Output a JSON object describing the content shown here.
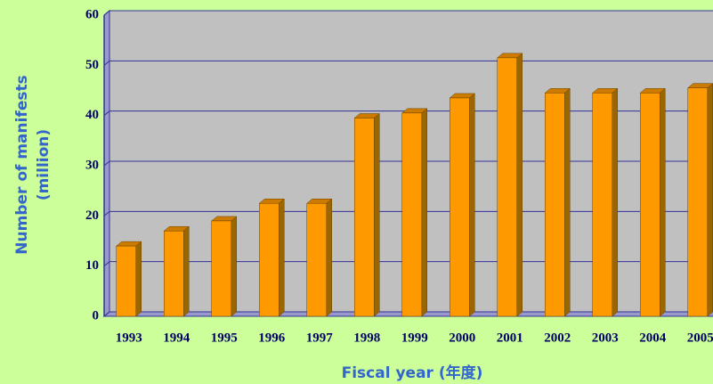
{
  "chart_data": {
    "type": "bar",
    "ylabel": [
      "Number of manifests",
      "(million)"
    ],
    "xlabel": "Fiscal year (年度)",
    "categories": [
      "1993",
      "1994",
      "1995",
      "1996",
      "1997",
      "1998",
      "1999",
      "2000",
      "2001",
      "2002",
      "2003",
      "2004",
      "2005"
    ],
    "values": [
      14,
      17,
      19,
      22.5,
      22.5,
      39.5,
      40.5,
      43.5,
      51.5,
      44.5,
      44.5,
      44.5,
      45.5
    ],
    "color": "#ff9900",
    "ylim": [
      0,
      60
    ],
    "yticks": [
      0,
      10,
      20,
      30,
      40,
      50,
      60
    ],
    "grid": true
  }
}
